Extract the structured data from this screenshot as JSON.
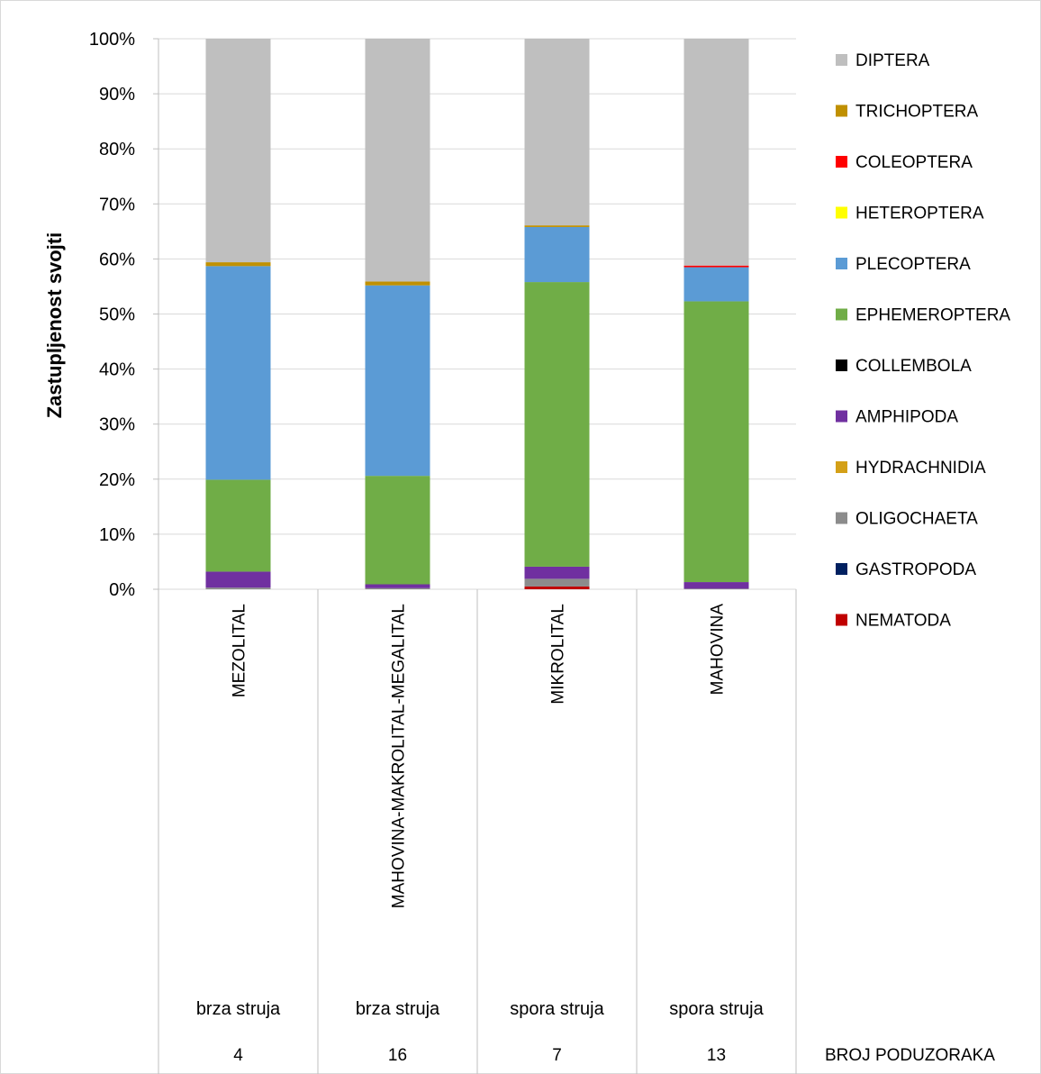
{
  "chart_data": {
    "type": "stacked-bar-100",
    "ylabel": "Zastupljenost svojti",
    "y_ticks": [
      "0%",
      "10%",
      "20%",
      "30%",
      "40%",
      "50%",
      "60%",
      "70%",
      "80%",
      "90%",
      "100%"
    ],
    "ylim": [
      0,
      100
    ],
    "grid": true,
    "legend_position": "right",
    "categories": [
      "MEZOLITAL",
      "MAHOVINA-MAKROLITAL-MEGALITAL",
      "MIKROLITAL",
      "MAHOVINA"
    ],
    "flow": [
      "brza struja",
      "brza struja",
      "spora struja",
      "spora struja"
    ],
    "subsample_counts": [
      "4",
      "16",
      "7",
      "13"
    ],
    "subsample_label": "BROJ PODUZORAKA",
    "series": [
      {
        "name": "NEMATODA",
        "color": "#c00000",
        "values": [
          0.0,
          0.0,
          0.5,
          0.0
        ]
      },
      {
        "name": "GASTROPODA",
        "color": "#002060",
        "values": [
          0.0,
          0.0,
          0.0,
          0.0
        ]
      },
      {
        "name": "OLIGOCHAETA",
        "color": "#8c8c8c",
        "values": [
          0.3,
          0.2,
          1.4,
          0.1
        ]
      },
      {
        "name": "HYDRACHNIDIA",
        "color": "#d4a017",
        "values": [
          0.0,
          0.0,
          0.0,
          0.0
        ]
      },
      {
        "name": "AMPHIPODA",
        "color": "#7030a0",
        "values": [
          2.9,
          0.7,
          2.2,
          1.2
        ]
      },
      {
        "name": "COLLEMBOLA",
        "color": "#000000",
        "values": [
          0.0,
          0.0,
          0.0,
          0.0
        ]
      },
      {
        "name": "EPHEMEROPTERA",
        "color": "#70ad47",
        "values": [
          16.7,
          19.7,
          51.7,
          51.0
        ]
      },
      {
        "name": "PLECOPTERA",
        "color": "#5b9bd5",
        "values": [
          38.8,
          34.6,
          10.0,
          6.2
        ]
      },
      {
        "name": "HETEROPTERA",
        "color": "#ffff00",
        "values": [
          0.0,
          0.0,
          0.0,
          0.0
        ]
      },
      {
        "name": "COLEOPTERA",
        "color": "#ff0000",
        "values": [
          0.0,
          0.0,
          0.0,
          0.3
        ]
      },
      {
        "name": "TRICHOPTERA",
        "color": "#c09000",
        "values": [
          0.7,
          0.7,
          0.3,
          0.0
        ]
      },
      {
        "name": "DIPTERA",
        "color": "#bfbfbf",
        "values": [
          40.6,
          44.1,
          33.9,
          41.2
        ]
      }
    ]
  }
}
